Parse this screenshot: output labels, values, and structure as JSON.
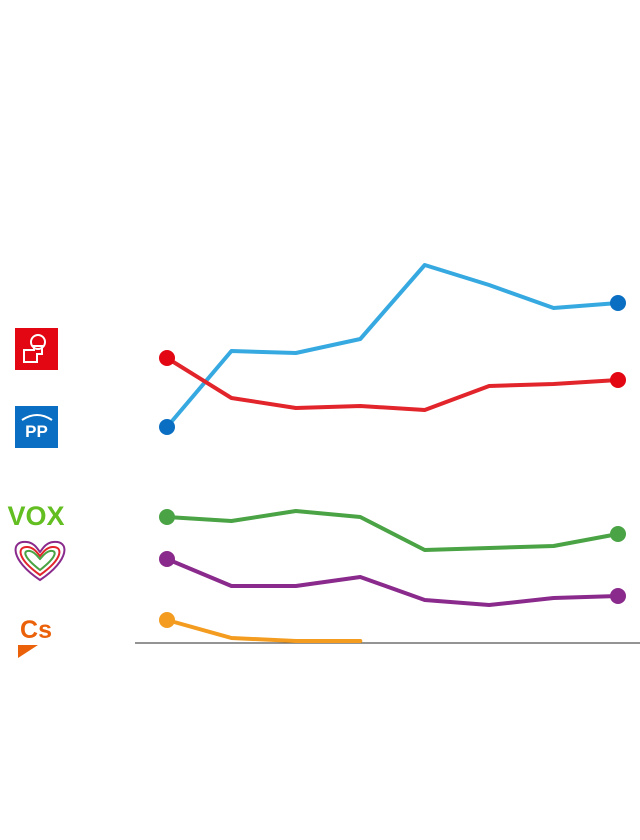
{
  "chart_data": {
    "type": "line",
    "categories": [
      null,
      null,
      null,
      null,
      null,
      null,
      null,
      null
    ],
    "ylim": [
      0,
      40
    ],
    "series": [
      {
        "name": "PP",
        "color": "#36a9e1",
        "dot": "#0a6fc2",
        "values": [
          21.6,
          29.2,
          29.0,
          30.4,
          37.8,
          35.8,
          33.5,
          34.0
        ]
      },
      {
        "color": "#e2242b",
        "dot": "#e30613",
        "values": [
          28.5,
          24.5,
          23.5,
          23.7,
          23.3,
          25.7,
          25.9,
          26.3
        ]
      },
      {
        "name": "VOX",
        "color": "#4aa344",
        "dot": "#4aa344",
        "values": [
          12.6,
          12.2,
          13.2,
          12.6,
          9.3,
          9.5,
          9.7,
          10.9
        ]
      },
      {
        "color": "#8a2a8c",
        "dot": "#8a2a8c",
        "values": [
          8.4,
          5.7,
          5.7,
          6.6,
          4.3,
          3.8,
          4.5,
          4.7
        ]
      },
      {
        "name": "Cs",
        "color": "#f39c1f",
        "dot": "#f39c1f",
        "values": [
          2.3,
          0.5,
          0.2,
          0.2,
          null,
          null,
          null,
          null
        ]
      }
    ]
  }
}
